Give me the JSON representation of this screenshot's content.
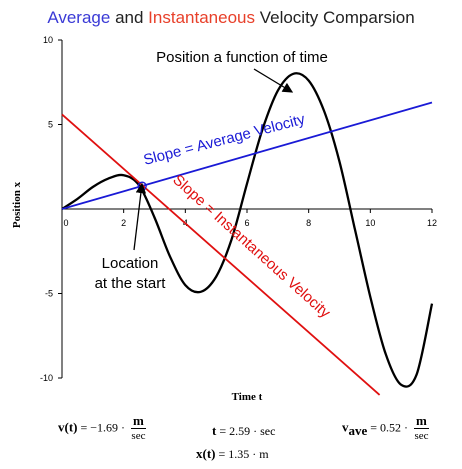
{
  "chart_data": {
    "type": "line",
    "title_words": [
      "Average",
      "and",
      "Instantaneous",
      "Velocity Comparsion"
    ],
    "xlabel": "Time t",
    "ylabel": "Position x",
    "xlim": [
      0,
      12
    ],
    "ylim": [
      -10,
      10
    ],
    "x_ticks": [
      "0",
      "2",
      "4",
      "6",
      "8",
      "10",
      "12"
    ],
    "y_ticks": [
      "10",
      "5",
      "-5",
      "-10"
    ],
    "series": [
      {
        "color": "#000000",
        "x": [
          0,
          0.5,
          1,
          1.5,
          2,
          2.5,
          3,
          3.5,
          4,
          4.5,
          5,
          5.5,
          6,
          6.5,
          7,
          7.5,
          8,
          8.5,
          9,
          9.5,
          10,
          10.5,
          11,
          11.5,
          12
        ],
        "y": [
          0,
          0.6,
          1.3,
          1.8,
          2.0,
          1.4,
          -0.5,
          -2.8,
          -4.5,
          -4.9,
          -4.0,
          -1.8,
          1.5,
          4.7,
          7.0,
          8.0,
          7.6,
          5.8,
          2.8,
          -1.2,
          -5.2,
          -8.6,
          -10.4,
          -9.8,
          -5.6
        ]
      },
      {
        "color": "#1a1ad6",
        "x": [
          0,
          12
        ],
        "y": [
          0,
          6.3
        ]
      },
      {
        "color": "#e01010",
        "x": [
          0,
          10.3
        ],
        "y": [
          5.6,
          -11.0
        ]
      }
    ],
    "marker": {
      "x": 2.6,
      "y": 1.35
    },
    "annotations": {
      "position_label": "Position a function of time",
      "avg_slope_label": "Slope = Average Velocity",
      "inst_slope_label": "Slope = Instantaneous Velocity",
      "start_label_line1": "Location",
      "start_label_line2": "at the start"
    },
    "colors": {
      "average": "#3a3ad6",
      "instantaneous": "#e8402a"
    }
  },
  "formulas": {
    "v_left": "v(t)",
    "v_value": "= −1.69 ·",
    "v_unit_num": "m",
    "v_unit_den": "sec",
    "t_left": "t",
    "t_value": "= 2.59 · sec",
    "x_left": "x(t)",
    "x_value": "= 1.35 · m",
    "vave_left": "v",
    "vave_sub": "ave",
    "vave_value": "= 0.52 ·",
    "vave_unit_num": "m",
    "vave_unit_den": "sec"
  }
}
